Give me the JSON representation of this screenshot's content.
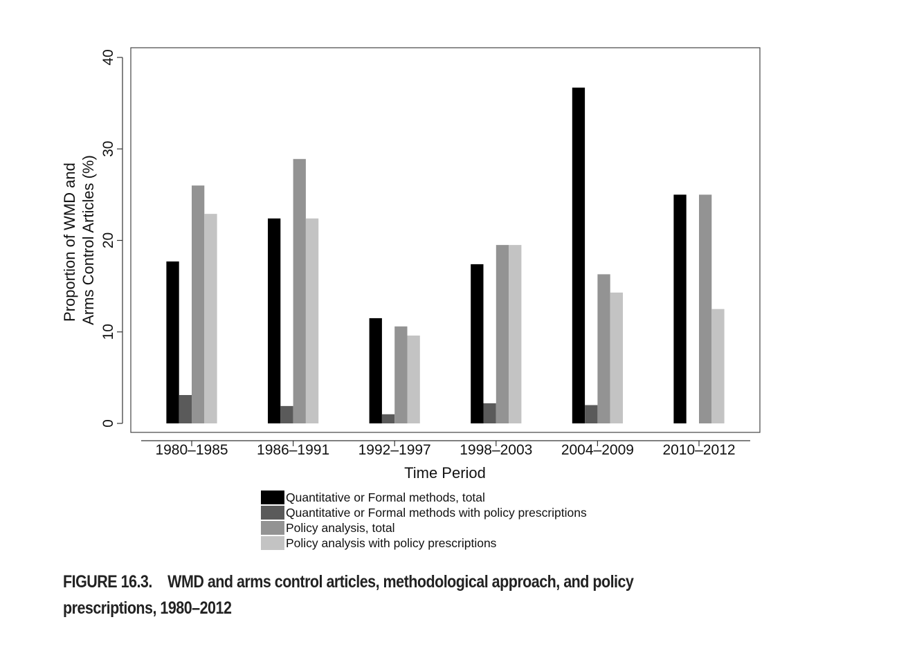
{
  "chart_data": {
    "type": "bar",
    "xlabel": "Time Period",
    "ylabel_lines": [
      "Proportion of WMD and",
      "Arms Control Articles (%)"
    ],
    "ylim": [
      0,
      40
    ],
    "yticks": [
      0,
      10,
      20,
      30,
      40
    ],
    "grid": false,
    "legend_position": "bottom",
    "categories": [
      "1980–1985",
      "1986–1991",
      "1992–1997",
      "1998–2003",
      "2004–2009",
      "2010–2012"
    ],
    "series": [
      {
        "name": "Quantitative or Formal methods, total",
        "color": "#000000",
        "values": [
          17.7,
          22.4,
          11.5,
          17.4,
          36.7,
          25.0
        ]
      },
      {
        "name": "Quantitative or Formal methods with policy prescriptions",
        "color": "#5a5a5a",
        "values": [
          3.1,
          1.9,
          1.0,
          2.2,
          2.0,
          0
        ]
      },
      {
        "name": "Policy analysis, total",
        "color": "#939393",
        "values": [
          26.0,
          28.9,
          10.6,
          19.5,
          16.3,
          25.0
        ]
      },
      {
        "name": "Policy analysis with policy prescriptions",
        "color": "#c3c3c3",
        "values": [
          22.9,
          22.4,
          9.6,
          19.5,
          14.3,
          12.5
        ]
      }
    ]
  },
  "caption": {
    "label": "FIGURE 16.3.",
    "text": "WMD and arms control articles, methodological approach, and policy prescriptions, 1980–2012"
  }
}
